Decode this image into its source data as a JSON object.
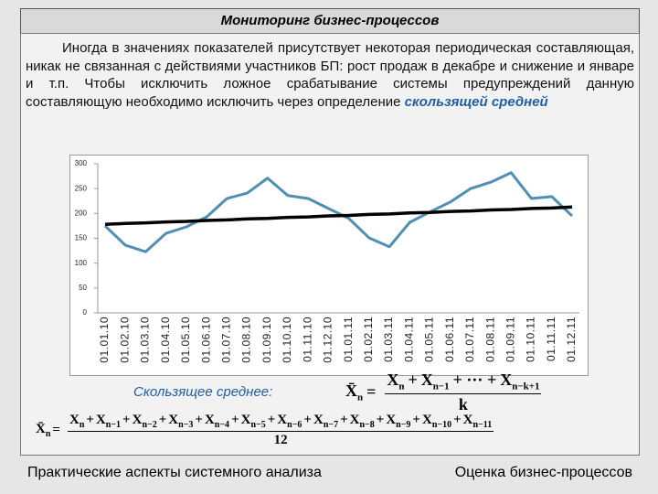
{
  "header": {
    "title": "Мониторинг бизнес-процессов"
  },
  "text": {
    "paragraph": "Иногда в значениях показателей присутствует некоторая периодическая составляющая, никак не связанная с действиями участников БП: рост продаж в декабре и снижение и январе и т.п. Чтобы исключить ложное срабатывание системы предупреждений данную составляющую необходимо исключить через определение",
    "highlight": "скользящей средней"
  },
  "chart_data": {
    "type": "line",
    "categories": [
      "01.01.10",
      "01.02.10",
      "01.03.10",
      "01.04.10",
      "01.05.10",
      "01.06.10",
      "01.07.10",
      "01.08.10",
      "01.09.10",
      "01.10.10",
      "01.11.10",
      "01.12.10",
      "01.01.11",
      "01.02.11",
      "01.03.11",
      "01.04.11",
      "01.05.11",
      "01.06.11",
      "01.07.11",
      "01.08.11",
      "01.09.11",
      "01.10.11",
      "01.11.11",
      "01.12.11"
    ],
    "series": [
      {
        "color": "#4f8fb5",
        "values": [
          175,
          136,
          123,
          160,
          173,
          193,
          230,
          241,
          271,
          236,
          230,
          210,
          190,
          151,
          133,
          182,
          203,
          223,
          250,
          263,
          282,
          230,
          234,
          195
        ]
      },
      {
        "color": "#000000",
        "values": [
          178,
          180,
          181,
          183,
          184,
          186,
          187,
          189,
          190,
          192,
          193,
          195,
          196,
          198,
          199,
          201,
          202,
          204,
          205,
          207,
          208,
          210,
          211,
          213
        ]
      }
    ],
    "ylim": [
      0,
      300
    ],
    "yticks": [
      0,
      50,
      100,
      150,
      200,
      250,
      300
    ],
    "grid": false
  },
  "formulas": {
    "label": "Скользящее среднее:",
    "moving": {
      "lhs": [
        {
          "text": "X̄",
          "sub": "n"
        },
        {
          "text": "="
        }
      ],
      "numerator": [
        {
          "text": "X",
          "sub": "n"
        },
        {
          "text": "+"
        },
        {
          "text": "X",
          "sub": "n−1"
        },
        {
          "text": "+ ··· +"
        },
        {
          "text": "X",
          "sub": "n−k+1"
        }
      ],
      "denominator": "k"
    },
    "yearly": {
      "lhs": [
        {
          "text": "X̄",
          "sub": "n"
        },
        {
          "text": "="
        }
      ],
      "numerator": [
        {
          "text": "X",
          "sub": "n"
        },
        {
          "text": "+"
        },
        {
          "text": "X",
          "sub": "n−1"
        },
        {
          "text": "+"
        },
        {
          "text": "X",
          "sub": "n−2"
        },
        {
          "text": "+"
        },
        {
          "text": "X",
          "sub": "n−3"
        },
        {
          "text": "+"
        },
        {
          "text": "X",
          "sub": "n−4"
        },
        {
          "text": "+"
        },
        {
          "text": "X",
          "sub": "n−5"
        },
        {
          "text": "+"
        },
        {
          "text": "X",
          "sub": "n−6"
        },
        {
          "text": "+"
        },
        {
          "text": "X",
          "sub": "n−7"
        },
        {
          "text": "+"
        },
        {
          "text": "X",
          "sub": "n−8"
        },
        {
          "text": "+"
        },
        {
          "text": "X",
          "sub": "n−9"
        },
        {
          "text": "+"
        },
        {
          "text": "X",
          "sub": "n−10"
        },
        {
          "text": "+"
        },
        {
          "text": "X",
          "sub": "n−11"
        }
      ],
      "denominator": "12"
    }
  },
  "footer": {
    "left": "Практические аспекты системного анализа",
    "right": "Оценка бизнес-процессов"
  }
}
